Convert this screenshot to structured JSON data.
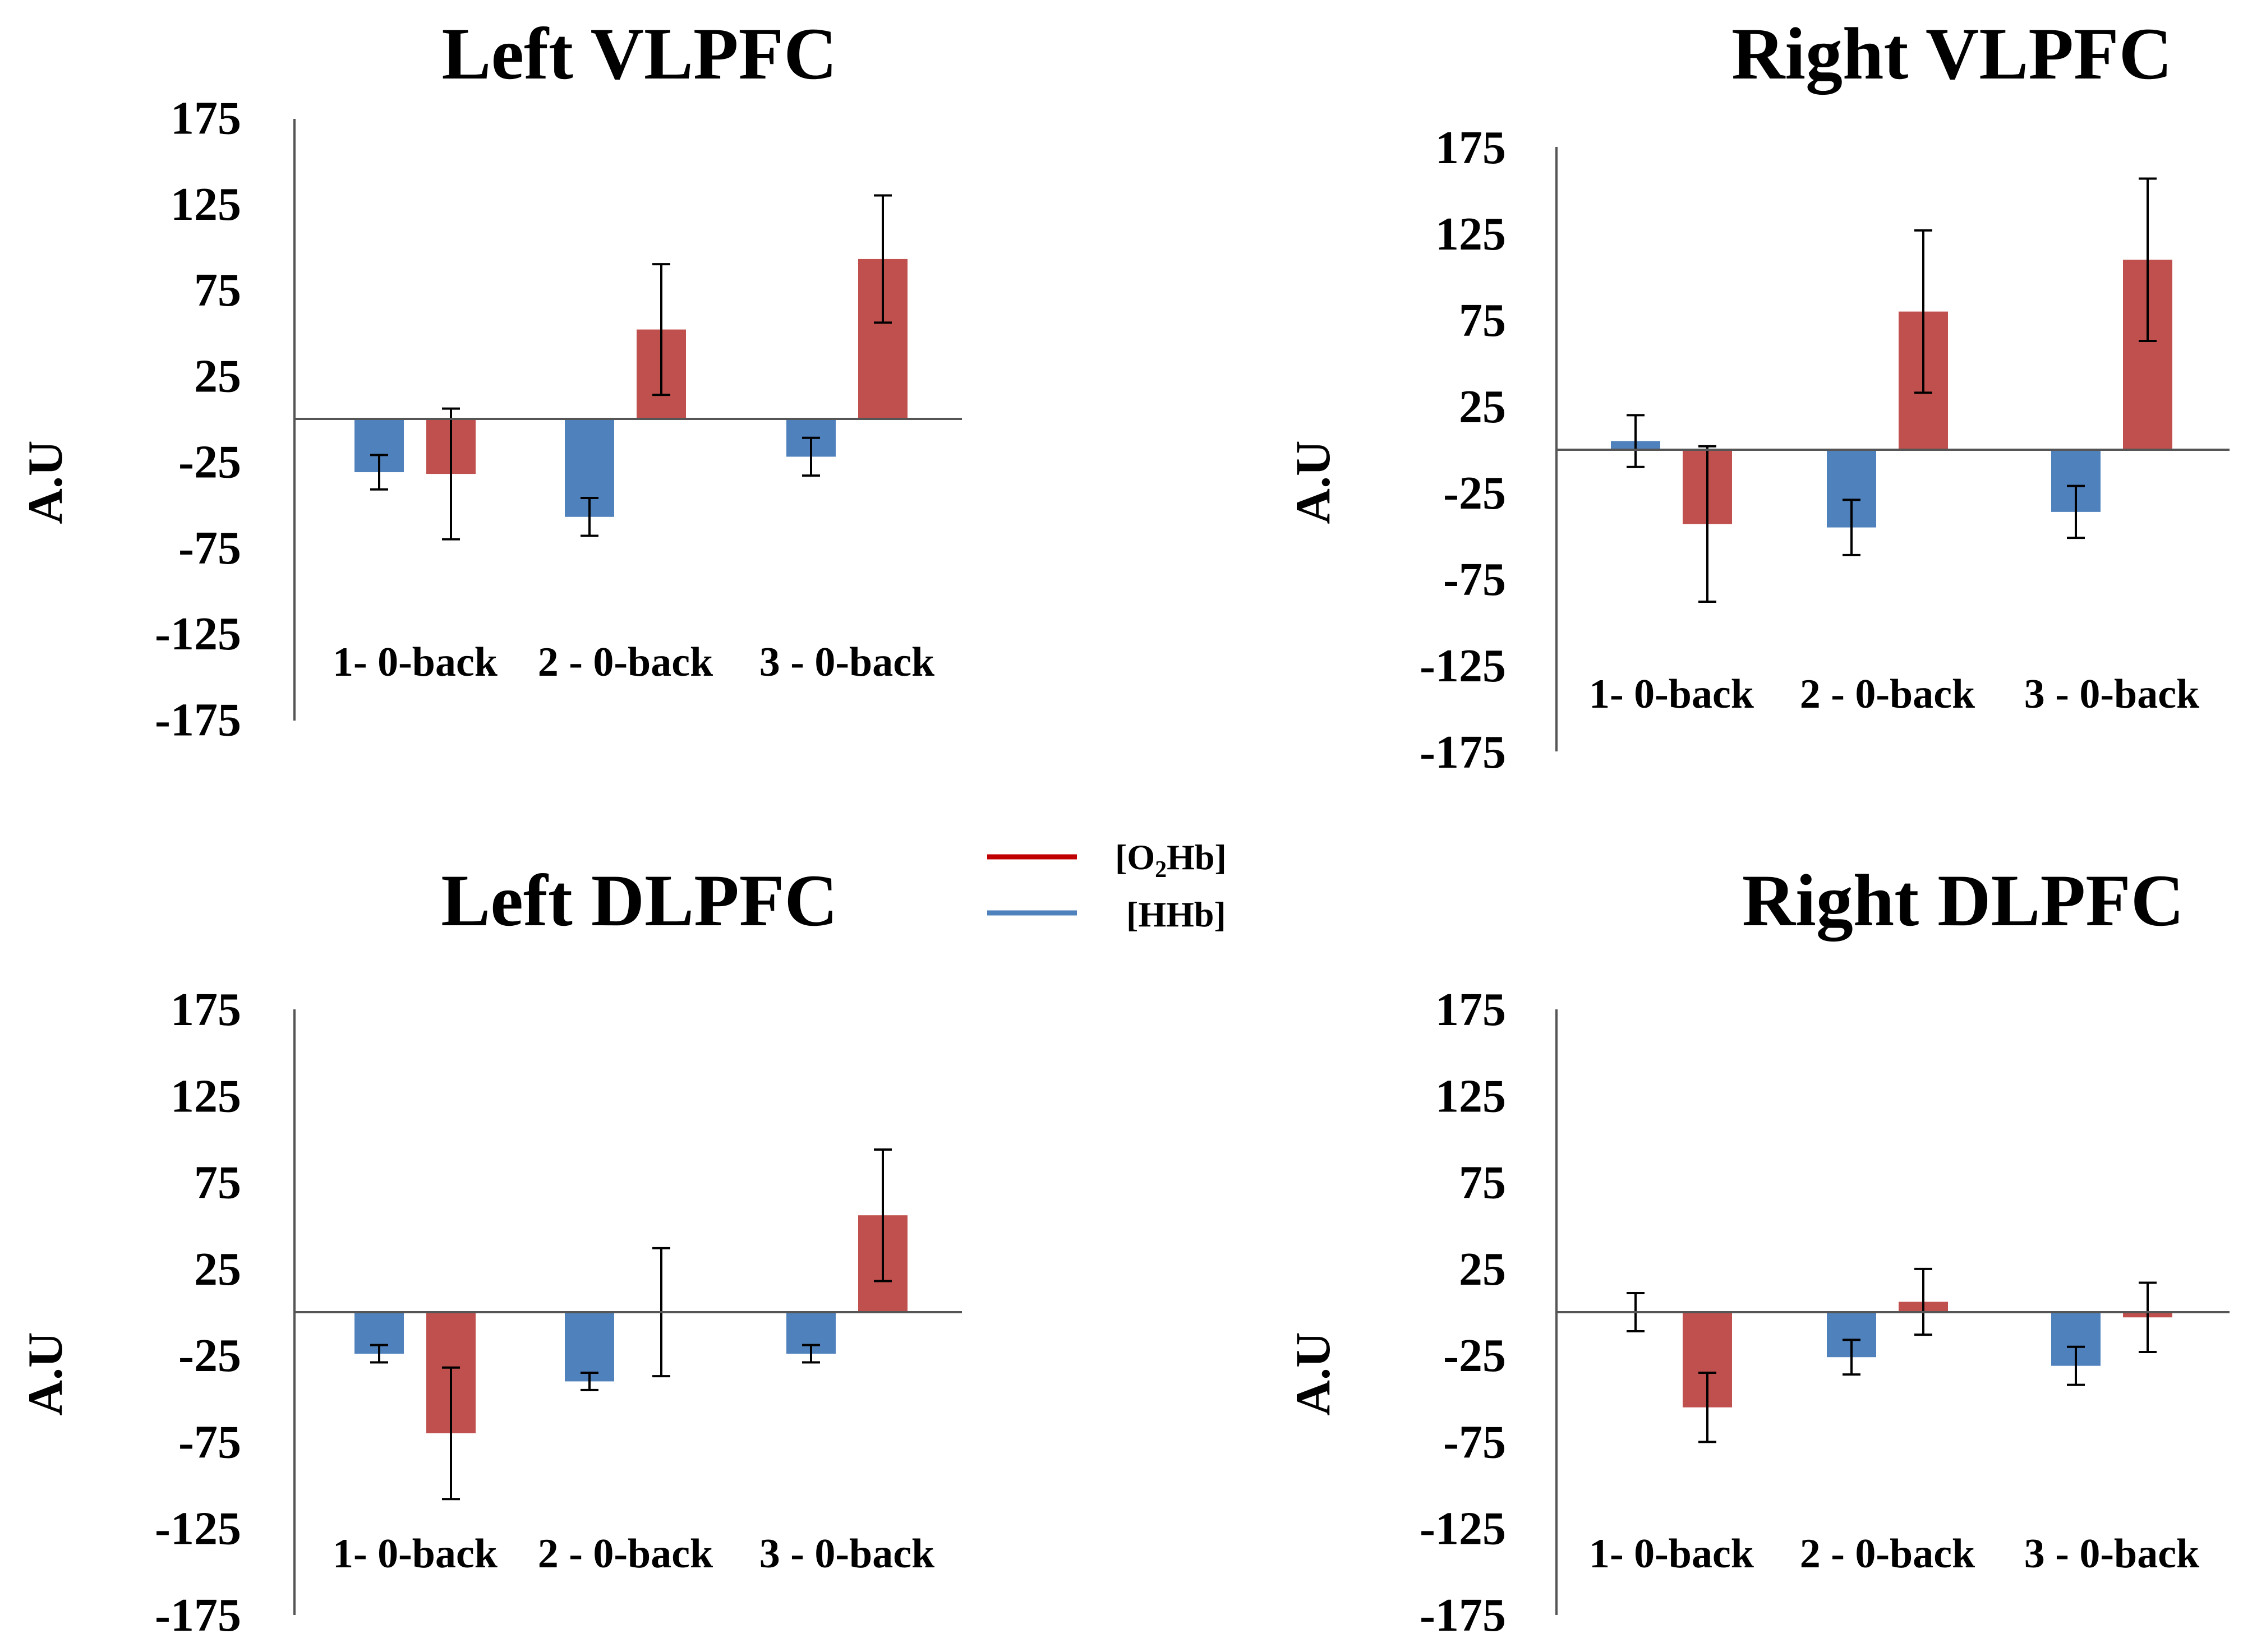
{
  "legend": {
    "o2hb": {
      "prefix": "[O",
      "subscript": "2",
      "suffix": "Hb]",
      "color": "#c0504d",
      "swatch_color": "#c00000"
    },
    "hhb": {
      "label": "[HHb]",
      "color": "#4f81bd"
    }
  },
  "chart_data": [
    {
      "type": "bar",
      "title": "Left VLPFC",
      "ylabel": "A.U",
      "ylim": [
        -175,
        175
      ],
      "yticks": [
        "175",
        "125",
        "75",
        "25",
        "-25",
        "-75",
        "-125",
        "-175"
      ],
      "categories": [
        "1- 0-back",
        "2 - 0-back",
        "3 - 0-back"
      ],
      "series": [
        {
          "name": "[HHb]",
          "color": "#4f81bd",
          "values": [
            -31,
            -57,
            -22
          ],
          "errors": [
            10,
            11,
            11
          ]
        },
        {
          "name": "[O2Hb]",
          "color": "#c0504d",
          "values": [
            -32,
            52,
            93
          ],
          "errors": [
            38,
            38,
            37
          ]
        }
      ]
    },
    {
      "type": "bar",
      "title": "Right VLPFC",
      "ylabel": "A.U",
      "ylim": [
        -175,
        175
      ],
      "yticks": [
        "175",
        "125",
        "75",
        "25",
        "-25",
        "-75",
        "-125",
        "-175"
      ],
      "categories": [
        "1- 0-back",
        "2 - 0-back",
        "3 - 0-back"
      ],
      "series": [
        {
          "name": "[HHb]",
          "color": "#4f81bd",
          "values": [
            5,
            -45,
            -36
          ],
          "errors": [
            15,
            16,
            15
          ]
        },
        {
          "name": "[O2Hb]",
          "color": "#c0504d",
          "values": [
            -43,
            80,
            110
          ],
          "errors": [
            45,
            47,
            47
          ]
        }
      ]
    },
    {
      "type": "bar",
      "title": "Left DLPFC",
      "ylabel": "A.U",
      "ylim": [
        -175,
        175
      ],
      "yticks": [
        "175",
        "125",
        "75",
        "25",
        "-25",
        "-75",
        "-125",
        "-175"
      ],
      "categories": [
        "1- 0-back",
        "2 - 0-back",
        "3 - 0-back"
      ],
      "series": [
        {
          "name": "[HHb]",
          "color": "#4f81bd",
          "values": [
            -24,
            -40,
            -24
          ],
          "errors": [
            5,
            5,
            5
          ]
        },
        {
          "name": "[O2Hb]",
          "color": "#c0504d",
          "values": [
            -70,
            0,
            56
          ],
          "errors": [
            38,
            37,
            38
          ]
        }
      ]
    },
    {
      "type": "bar",
      "title": "Right DLPFC",
      "ylabel": "A.U",
      "ylim": [
        -175,
        175
      ],
      "yticks": [
        "175",
        "125",
        "75",
        "25",
        "-25",
        "-75",
        "-125",
        "-175"
      ],
      "categories": [
        "1- 0-back",
        "2 - 0-back",
        "3 - 0-back"
      ],
      "series": [
        {
          "name": "[HHb]",
          "color": "#4f81bd",
          "values": [
            0,
            -26,
            -31
          ],
          "errors": [
            11,
            10,
            11
          ]
        },
        {
          "name": "[O2Hb]",
          "color": "#c0504d",
          "values": [
            -55,
            6,
            -3
          ],
          "errors": [
            20,
            19,
            20
          ]
        }
      ]
    }
  ]
}
